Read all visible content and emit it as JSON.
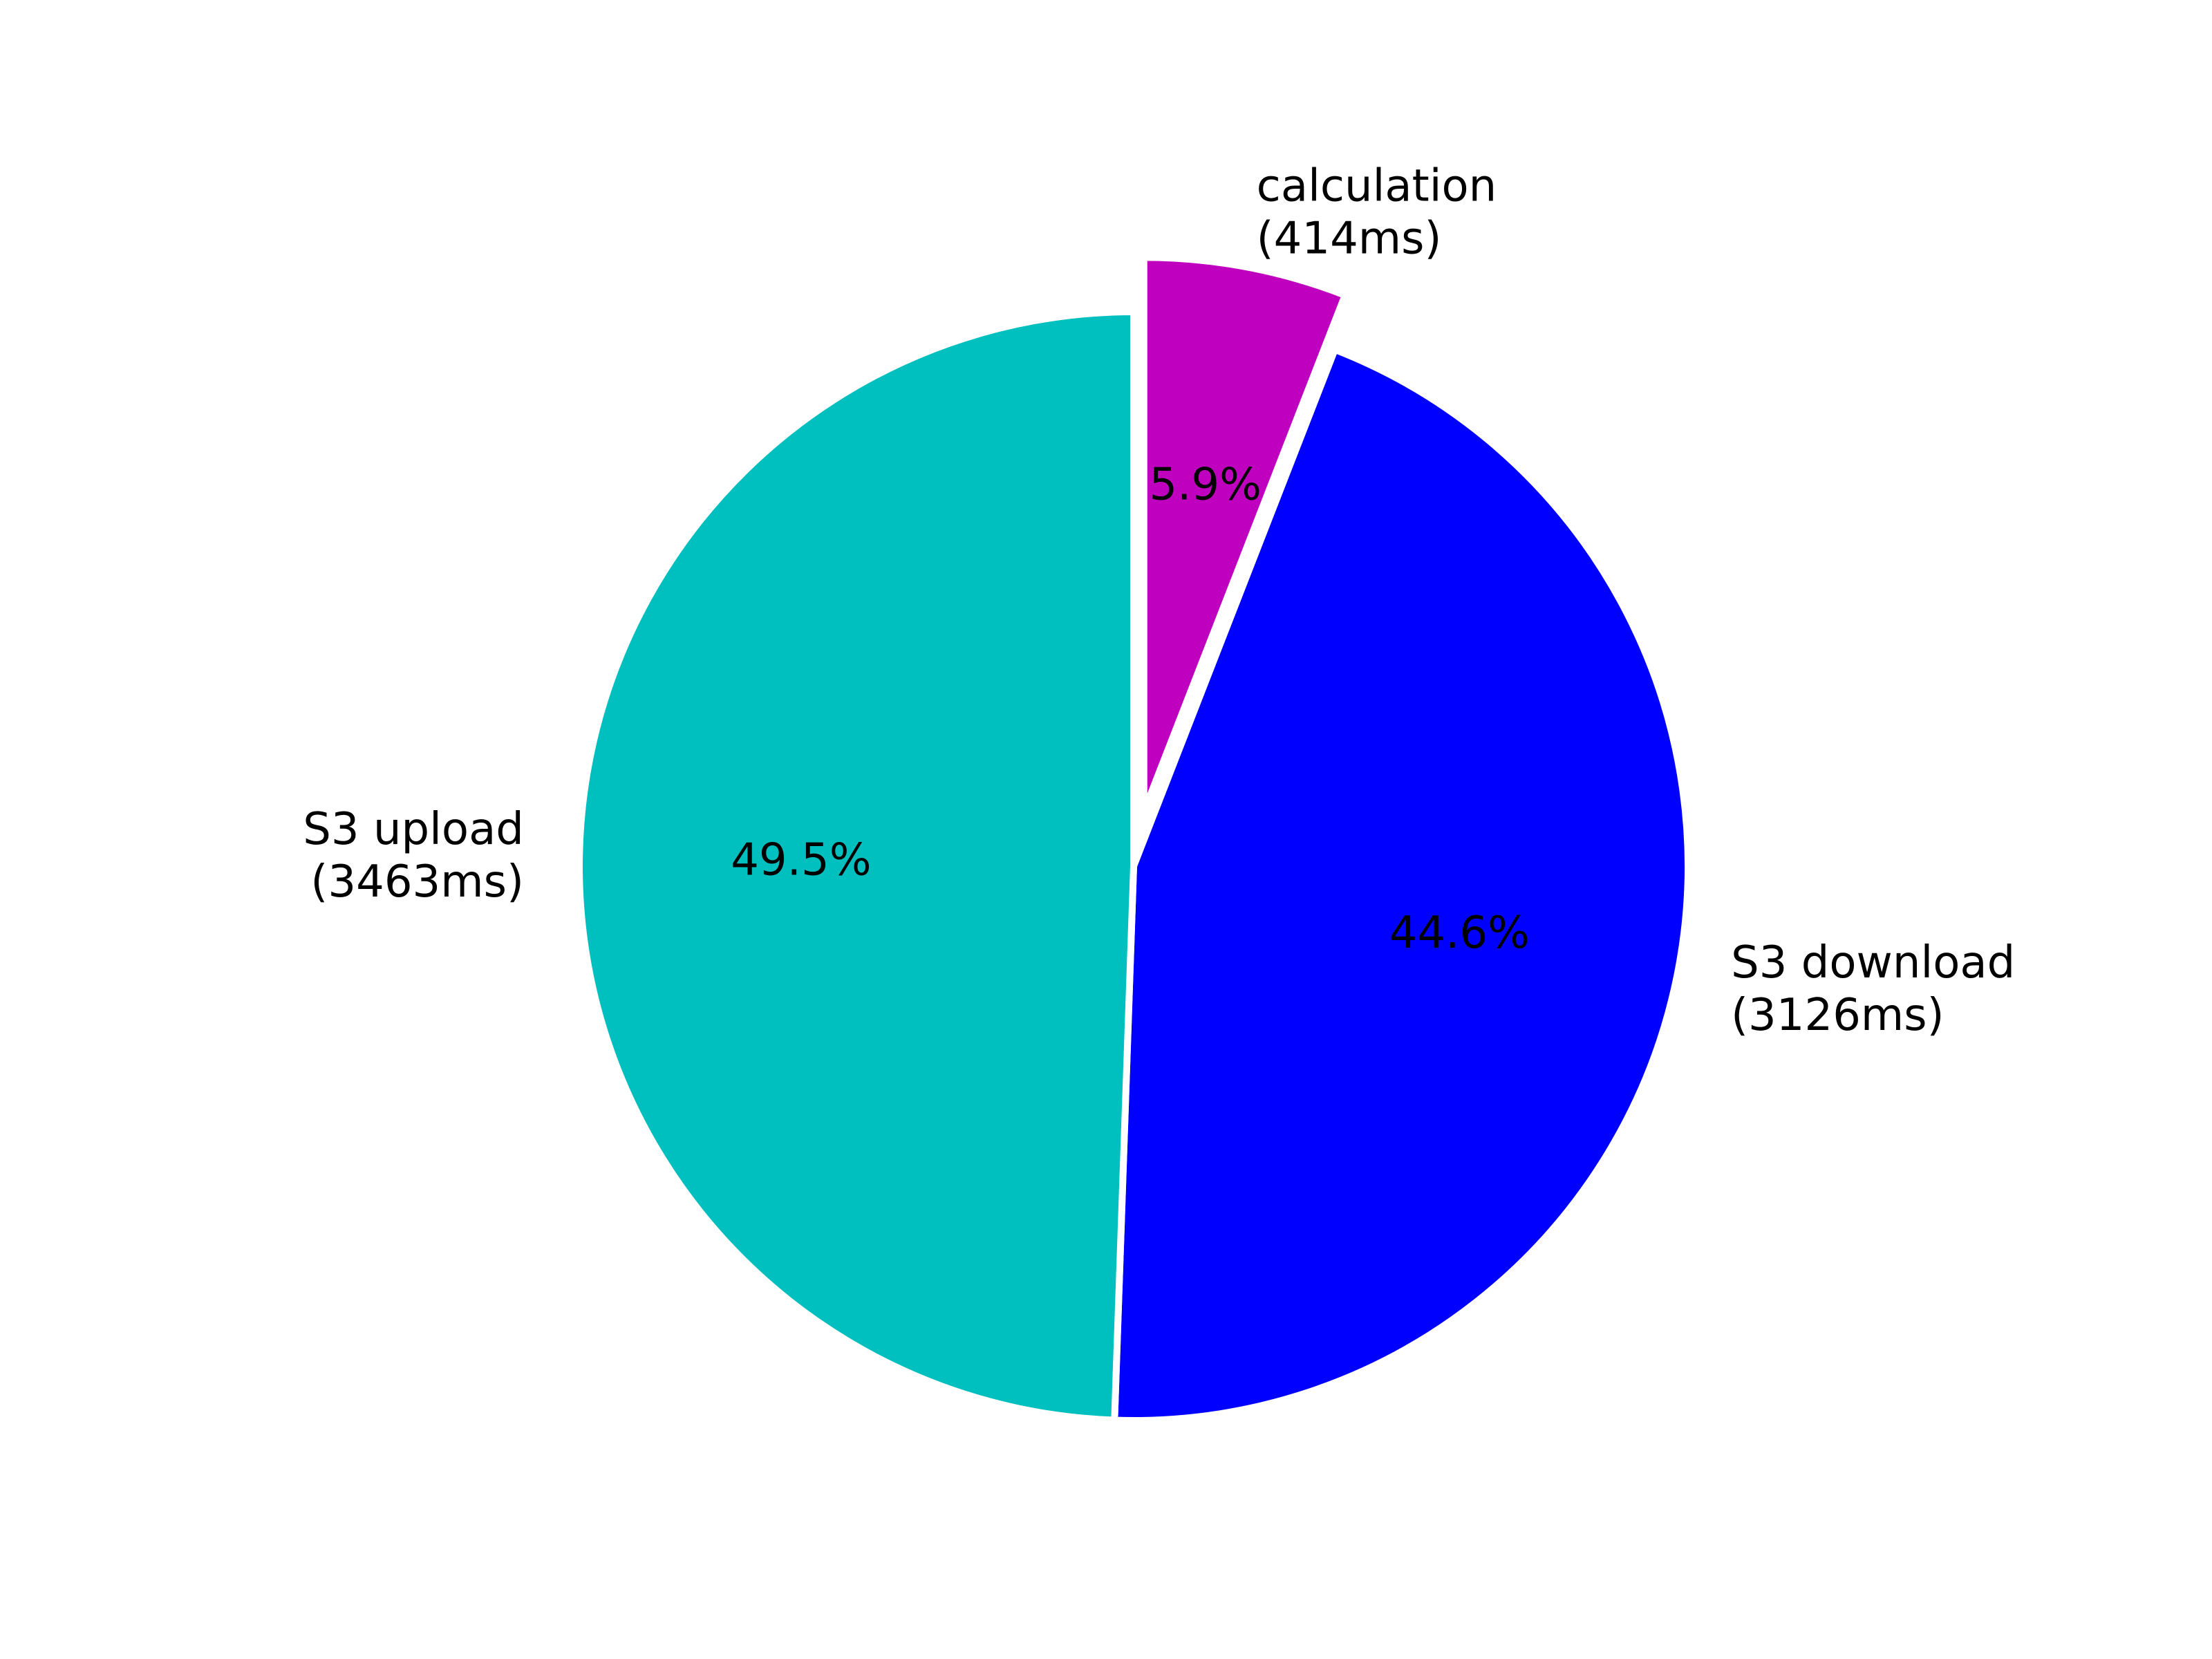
{
  "chart_data": {
    "type": "pie",
    "title": "",
    "start": "top",
    "direction": "clockwise",
    "exploded": [
      "calculation"
    ],
    "slices": [
      {
        "key": "calculation",
        "name": "calculation",
        "duration": "(414ms)",
        "value": 414,
        "percent_label": "5.9%",
        "color": "#bf00bf"
      },
      {
        "key": "download",
        "name": "S3 download",
        "duration": "(3126ms)",
        "value": 3126,
        "percent_label": "44.6%",
        "color": "#0000ff"
      },
      {
        "key": "upload",
        "name": "S3 upload",
        "duration": "(3463ms)",
        "value": 3463,
        "percent_label": "49.5%",
        "color": "#00bfbf"
      }
    ]
  }
}
